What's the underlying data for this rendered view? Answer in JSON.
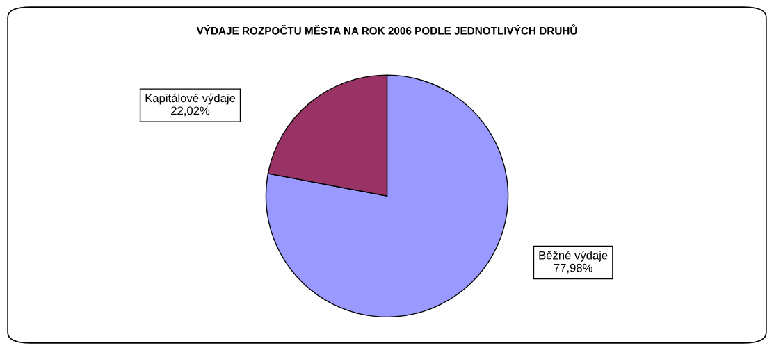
{
  "chart_data": {
    "type": "pie",
    "title": "VÝDAJE ROZPOČTU MĚSTA NA ROK 2006 PODLE JEDNOTLIVÝCH DRUHŮ",
    "categories": [
      "Běžné výdaje",
      "Kapitálové výdaje"
    ],
    "values": [
      77.98,
      22.02
    ],
    "value_labels": [
      "77,98%",
      "22,02%"
    ],
    "colors": [
      "#9999ff",
      "#993366"
    ]
  }
}
